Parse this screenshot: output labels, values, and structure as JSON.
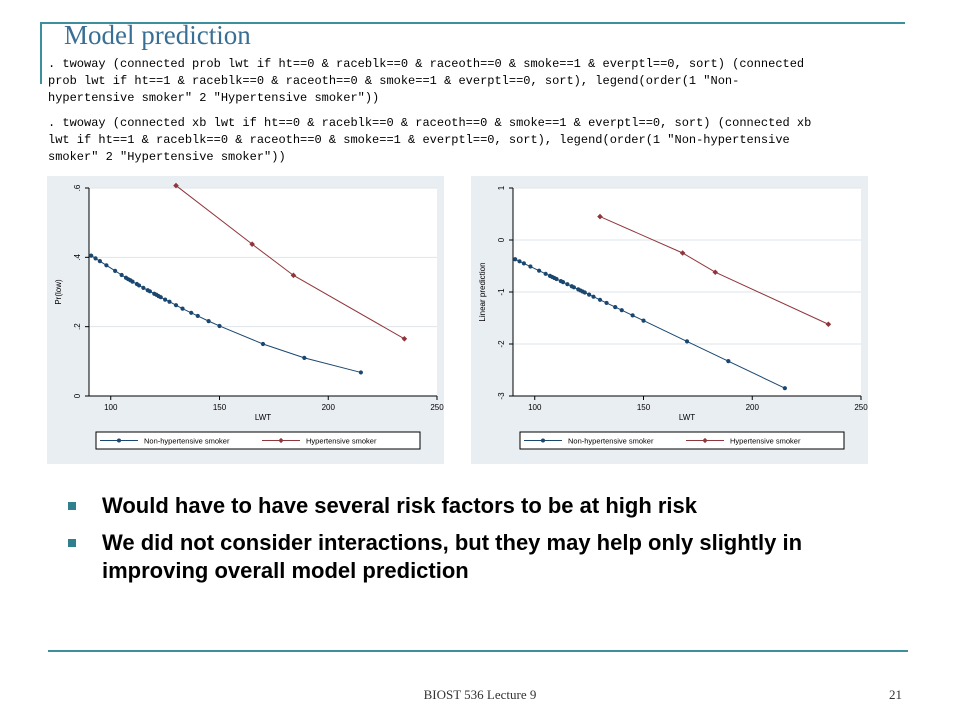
{
  "slide": {
    "title": "Model prediction",
    "code_blocks": [
      ". twoway (connected prob lwt if ht==0 & raceblk==0 & raceoth==0 & smoke==1 & everptl==0, sort) (connected\nprob lwt if ht==1 & raceblk==0 & raceoth==0 & smoke==1 & everptl==0, sort), legend(order(1 \"Non-\nhypertensive smoker\" 2 \"Hypertensive smoker\"))",
      ". twoway (connected xb lwt if ht==0 & raceblk==0 & raceoth==0 & smoke==1 & everptl==0, sort) (connected xb\nlwt if ht==1 & raceblk==0 & raceoth==0 & smoke==1 & everptl==0, sort), legend(order(1 \"Non-hypertensive\nsmoker\" 2 \"Hypertensive smoker\"))"
    ],
    "bullets": [
      "Would have to have several risk factors to be at high risk",
      "We did not consider interactions, but they may help only slightly in improving overall model prediction"
    ],
    "footer": "BIOST 536 Lecture 9",
    "page_number": "21"
  },
  "colors": {
    "series1": "#1a476f",
    "series2": "#90353b",
    "panel_bg": "#e9eef3",
    "plot_bg": "#ffffff",
    "grid": "#dfe5ea",
    "accent_rule": "#3d8f9c"
  },
  "chart_data": [
    {
      "type": "line",
      "xlabel": "LWT",
      "ylabel": "Pr(low)",
      "xlim": [
        90,
        250
      ],
      "ylim": [
        0,
        0.6
      ],
      "xticks": [
        100,
        150,
        200,
        250
      ],
      "yticks": [
        0,
        0.2,
        0.4,
        0.6
      ],
      "ytick_labels": [
        "0",
        ".2",
        ".4",
        ".6"
      ],
      "grid": true,
      "legend_position": "bottom",
      "series": [
        {
          "name": "Non-hypertensive smoker",
          "marker": "circle",
          "x": [
            91,
            93,
            95,
            98,
            102,
            105,
            107,
            108,
            109,
            110,
            112,
            113,
            115,
            117,
            118,
            120,
            121,
            122,
            123,
            125,
            127,
            130,
            133,
            137,
            140,
            145,
            150,
            170,
            189,
            215
          ],
          "y": [
            0.405,
            0.397,
            0.389,
            0.377,
            0.361,
            0.349,
            0.341,
            0.337,
            0.334,
            0.33,
            0.323,
            0.319,
            0.312,
            0.305,
            0.302,
            0.295,
            0.292,
            0.288,
            0.285,
            0.278,
            0.272,
            0.262,
            0.252,
            0.24,
            0.231,
            0.216,
            0.202,
            0.15,
            0.11,
            0.068
          ]
        },
        {
          "name": "Hypertensive smoker",
          "marker": "diamond",
          "x": [
            130,
            165,
            184,
            235
          ],
          "y": [
            0.607,
            0.438,
            0.348,
            0.165
          ]
        }
      ]
    },
    {
      "type": "line",
      "xlabel": "LWT",
      "ylabel": "Linear prediction",
      "xlim": [
        90,
        250
      ],
      "ylim": [
        -3,
        1
      ],
      "xticks": [
        100,
        150,
        200,
        250
      ],
      "yticks": [
        -3,
        -2,
        -1,
        0,
        1
      ],
      "ytick_labels": [
        "-3",
        "-2",
        "-1",
        "0",
        "1"
      ],
      "grid": true,
      "legend_position": "bottom",
      "series": [
        {
          "name": "Non-hypertensive smoker",
          "marker": "circle",
          "x": [
            91,
            93,
            95,
            98,
            102,
            105,
            107,
            108,
            109,
            110,
            112,
            113,
            115,
            117,
            118,
            120,
            121,
            122,
            123,
            125,
            127,
            130,
            133,
            137,
            140,
            145,
            150,
            170,
            189,
            215
          ],
          "y": [
            -0.37,
            -0.41,
            -0.45,
            -0.51,
            -0.59,
            -0.65,
            -0.69,
            -0.71,
            -0.73,
            -0.75,
            -0.79,
            -0.81,
            -0.85,
            -0.89,
            -0.91,
            -0.95,
            -0.97,
            -0.99,
            -1.01,
            -1.05,
            -1.09,
            -1.15,
            -1.21,
            -1.29,
            -1.35,
            -1.45,
            -1.55,
            -1.95,
            -2.33,
            -2.85
          ]
        },
        {
          "name": "Hypertensive smoker",
          "marker": "diamond",
          "x": [
            130,
            168,
            183,
            235
          ],
          "y": [
            0.45,
            -0.25,
            -0.62,
            -1.62
          ]
        }
      ]
    }
  ]
}
